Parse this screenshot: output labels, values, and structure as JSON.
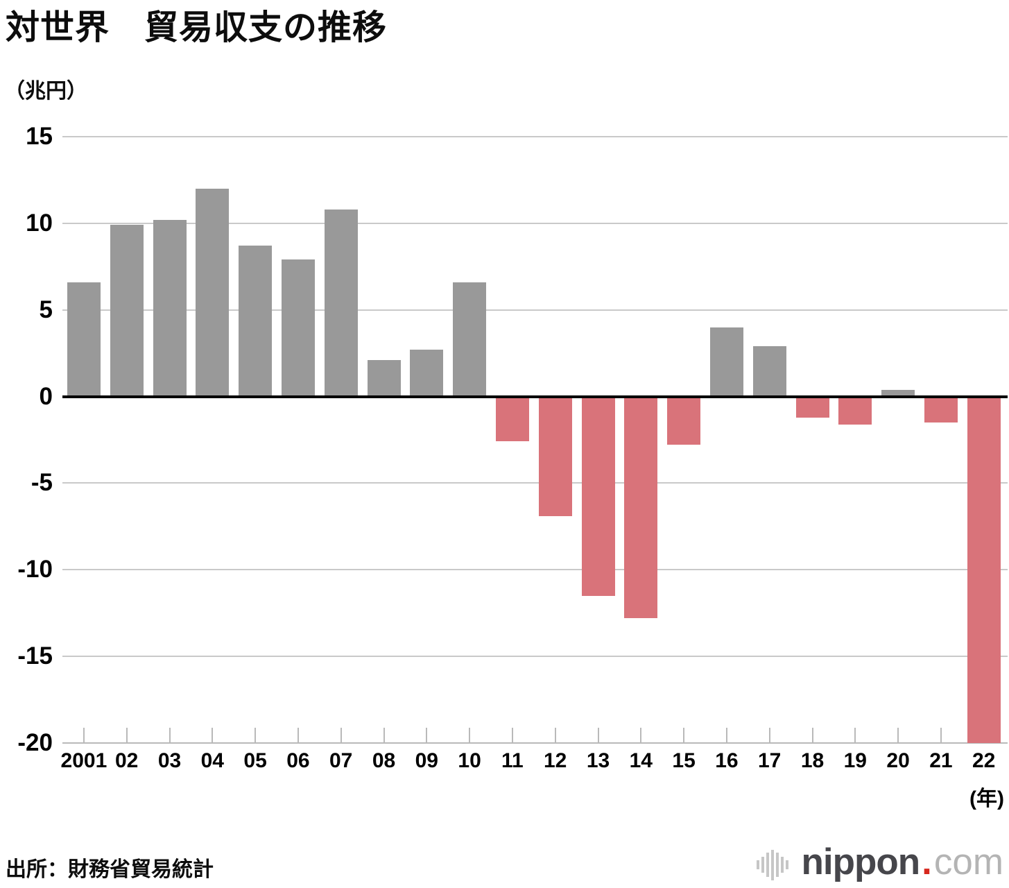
{
  "header": {
    "title": "対世界　貿易収支の推移"
  },
  "chart_data": {
    "type": "bar",
    "title": "対世界　貿易収支の推移",
    "unit_label": "（兆円）",
    "x_axis_suffix": "(年)",
    "categories": [
      "2001",
      "02",
      "03",
      "04",
      "05",
      "06",
      "07",
      "08",
      "09",
      "10",
      "11",
      "12",
      "13",
      "14",
      "15",
      "16",
      "17",
      "18",
      "19",
      "20",
      "21",
      "22"
    ],
    "values": [
      6.6,
      9.9,
      10.2,
      12.0,
      8.7,
      7.9,
      10.8,
      2.1,
      2.7,
      6.6,
      -2.6,
      -6.9,
      -11.5,
      -12.8,
      -2.8,
      4.0,
      2.9,
      -1.2,
      -1.6,
      0.4,
      -1.5,
      -20.0
    ],
    "y_ticks": [
      15,
      10,
      5,
      0,
      -5,
      -10,
      -15,
      -20
    ],
    "ylim": [
      -20,
      15
    ],
    "grid": true,
    "legend": "none",
    "colors": {
      "positive_bar": "#999999",
      "negative_bar": "#d9737a",
      "gridline": "#c9c9c9",
      "zero_line": "#000000",
      "axis_line": "#b9b9b9"
    }
  },
  "footer": {
    "source": "出所：財務省貿易統計",
    "logo": {
      "name": "nippon.com",
      "text_main": "nippon",
      "text_dot": ".",
      "text_suffix": "com",
      "dot_color": "#d7281e"
    }
  }
}
